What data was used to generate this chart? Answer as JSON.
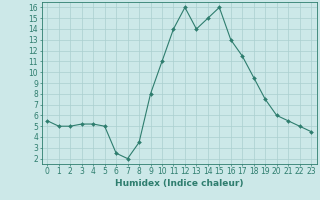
{
  "x": [
    0,
    1,
    2,
    3,
    4,
    5,
    6,
    7,
    8,
    9,
    10,
    11,
    12,
    13,
    14,
    15,
    16,
    17,
    18,
    19,
    20,
    21,
    22,
    23
  ],
  "y": [
    5.5,
    5.0,
    5.0,
    5.2,
    5.2,
    5.0,
    2.5,
    2.0,
    3.5,
    8.0,
    11.0,
    14.0,
    16.0,
    14.0,
    15.0,
    16.0,
    13.0,
    11.5,
    9.5,
    7.5,
    6.0,
    5.5,
    5.0,
    4.5
  ],
  "line_color": "#2e7d6e",
  "marker": "D",
  "marker_size": 2.0,
  "bg_color": "#cce8e8",
  "grid_color": "#aacfcf",
  "xlabel": "Humidex (Indice chaleur)",
  "xlim": [
    -0.5,
    23.5
  ],
  "ylim": [
    1.5,
    16.5
  ],
  "yticks": [
    2,
    3,
    4,
    5,
    6,
    7,
    8,
    9,
    10,
    11,
    12,
    13,
    14,
    15,
    16
  ],
  "xticks": [
    0,
    1,
    2,
    3,
    4,
    5,
    6,
    7,
    8,
    9,
    10,
    11,
    12,
    13,
    14,
    15,
    16,
    17,
    18,
    19,
    20,
    21,
    22,
    23
  ],
  "tick_color": "#2e7d6e",
  "axis_color": "#2e7d6e",
  "label_fontsize": 6.5,
  "tick_fontsize": 5.5
}
